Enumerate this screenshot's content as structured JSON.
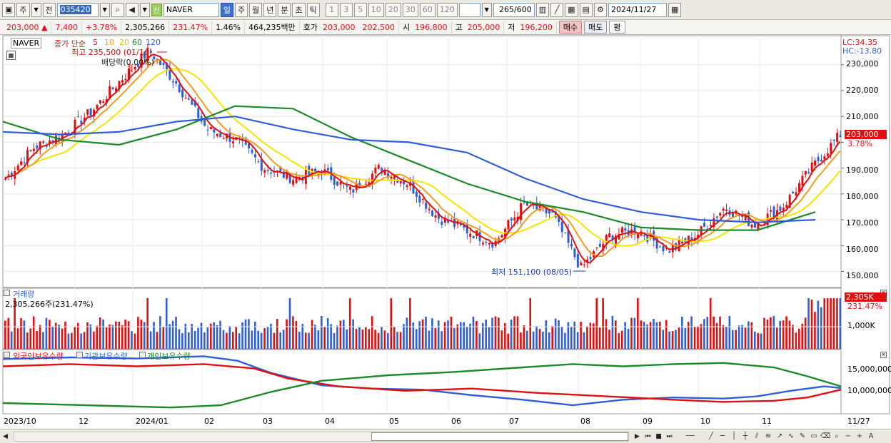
{
  "toolbar": {
    "period_main": "주",
    "period_prev": "전",
    "stock_code": "035420",
    "stock_name": "NAVER",
    "new_tag": "신",
    "periods": [
      "일",
      "주",
      "월",
      "년",
      "분",
      "초",
      "틱"
    ],
    "active_period": "일",
    "intervals": [
      "1",
      "3",
      "5",
      "10",
      "20",
      "30",
      "60",
      "120"
    ],
    "count": "265",
    "count_max": "/600",
    "date": "2024/11/27"
  },
  "quote": {
    "price": "203,000",
    "arrow": "▲",
    "change": "7,400",
    "change_pct": "+3.78%",
    "volume": "2,305,266",
    "volume_pct": "231.47%",
    "turnover_pct": "1.46%",
    "amount": "464,235백만",
    "bid_label": "호가",
    "bid1": "203,000",
    "bid2": "202,500",
    "open_label": "시",
    "open": "196,800",
    "high_label": "고",
    "high": "205,000",
    "low_label": "저",
    "low": "196,200",
    "buy_label": "매수",
    "sell_label": "매도",
    "eval_label": "평"
  },
  "price_panel": {
    "legend_name": "NAVER",
    "legend_type": "종가 단순",
    "ma_labels": [
      "5",
      "10",
      "20",
      "60",
      "120"
    ],
    "ma_colors": [
      "#e01010",
      "#f39c1e",
      "#f2e600",
      "#1a8a2a",
      "#2f5fd8"
    ],
    "lc": "LC:34.35",
    "hc": "HC:-13.80",
    "high_note": "최고 235,500 (01/16)",
    "low_note": "최저 151,100 (08/05)",
    "dividend_note": "배당락(0.00%)",
    "last_price": "203,000",
    "last_pct": "3.78%",
    "y_ticks": [
      "230,000",
      "220,000",
      "210,000",
      "200,000",
      "190,000",
      "180,000",
      "170,000",
      "160,000",
      "150,000"
    ]
  },
  "volume_panel": {
    "title": "거래량",
    "value": "2,305,266주(231.47%)",
    "last": "2,305K",
    "last_pct": "231.47%",
    "y_tick": "1,000K"
  },
  "holding_panel": {
    "foreign": "외국인보유수량",
    "institution": "기관보유수량",
    "individual": "개인보유수량",
    "y_ticks": [
      "15,000,000",
      "10,000,000"
    ]
  },
  "x_axis": [
    "2023/10",
    "12",
    "2024/01",
    "02",
    "03",
    "04",
    "05",
    "06",
    "07",
    "08",
    "09",
    "10",
    "11",
    "11/27"
  ],
  "chart_data": {
    "type": "candlestick",
    "series": [
      {
        "name": "NAVER",
        "type": "candlestick"
      },
      {
        "name": "5",
        "type": "line",
        "color": "#e01010"
      },
      {
        "name": "10",
        "type": "line",
        "color": "#f39c1e"
      },
      {
        "name": "20",
        "type": "line",
        "color": "#f2e600"
      },
      {
        "name": "60",
        "type": "line",
        "color": "#1a8a2a"
      },
      {
        "name": "120",
        "type": "line",
        "color": "#2f5fd8"
      }
    ],
    "ylim": [
      146000,
      236000
    ],
    "close_path": [
      [
        "2023/10",
        186000
      ],
      [
        "2023/10",
        198000
      ],
      [
        "2023/11",
        203000
      ],
      [
        "2023/12",
        212000
      ],
      [
        "2023/12",
        224000
      ],
      [
        "2024/01",
        235500
      ],
      [
        "2024/01",
        222000
      ],
      [
        "2024/02",
        205000
      ],
      [
        "2024/02",
        201000
      ],
      [
        "2024/03",
        190000
      ],
      [
        "2024/03",
        186000
      ],
      [
        "2024/04",
        189000
      ],
      [
        "2024/04",
        181000
      ],
      [
        "2024/05",
        190000
      ],
      [
        "2024/05",
        184000
      ],
      [
        "2024/06",
        171000
      ],
      [
        "2024/06",
        166000
      ],
      [
        "2024/07",
        161000
      ],
      [
        "2024/07",
        176000
      ],
      [
        "2024/07",
        172000
      ],
      [
        "2024/08",
        151100
      ],
      [
        "2024/08",
        164000
      ],
      [
        "2024/08",
        166000
      ],
      [
        "2024/09",
        158000
      ],
      [
        "2024/09",
        164000
      ],
      [
        "2024/10",
        175000
      ],
      [
        "2024/10",
        168000
      ],
      [
        "2024/11",
        175000
      ],
      [
        "2024/11",
        190000
      ],
      [
        "2024/11/27",
        203000
      ]
    ],
    "ma60": [
      [
        "2023/10",
        208000
      ],
      [
        "2023/11",
        201000
      ],
      [
        "2023/12",
        199000
      ],
      [
        "2024/01",
        205000
      ],
      [
        "2024/02",
        214000
      ],
      [
        "2024/03",
        213000
      ],
      [
        "2024/04",
        202000
      ],
      [
        "2024/05",
        193000
      ],
      [
        "2024/06",
        184000
      ],
      [
        "2024/07",
        177000
      ],
      [
        "2024/08",
        173000
      ],
      [
        "2024/09",
        167000
      ],
      [
        "2024/10",
        166000
      ],
      [
        "2024/11",
        166000
      ],
      [
        "2024/11/27",
        173000
      ]
    ],
    "ma120": [
      [
        "2023/10",
        204000
      ],
      [
        "2023/11",
        203000
      ],
      [
        "2023/12",
        204000
      ],
      [
        "2024/01",
        208000
      ],
      [
        "2024/02",
        210000
      ],
      [
        "2024/03",
        205000
      ],
      [
        "2024/04",
        201000
      ],
      [
        "2024/05",
        200000
      ],
      [
        "2024/06",
        196000
      ],
      [
        "2024/07",
        186000
      ],
      [
        "2024/08",
        178000
      ],
      [
        "2024/09",
        173000
      ],
      [
        "2024/10",
        170000
      ],
      [
        "2024/11",
        169000
      ],
      [
        "2024/11/27",
        170000
      ]
    ]
  }
}
